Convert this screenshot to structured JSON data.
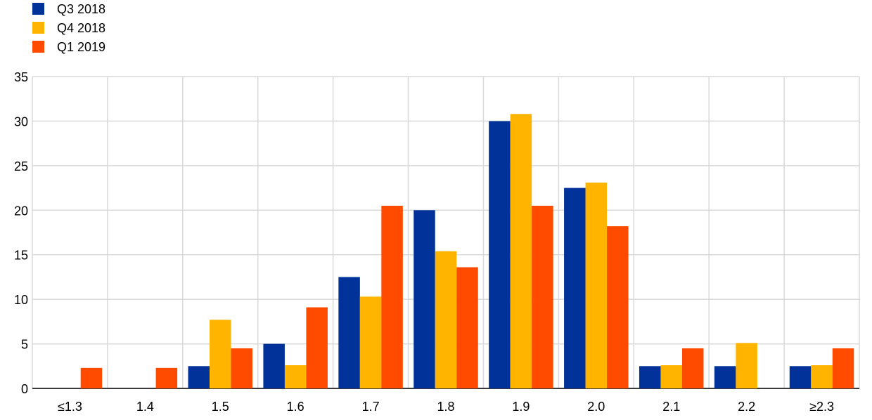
{
  "chart_data": {
    "type": "bar",
    "categories": [
      "≤1.3",
      "1.4",
      "1.5",
      "1.6",
      "1.7",
      "1.8",
      "1.9",
      "2.0",
      "2.1",
      "2.2",
      "≥2.3"
    ],
    "series": [
      {
        "name": "Q3 2018",
        "color": "#003299",
        "values": [
          0,
          0,
          2.5,
          5.0,
          12.5,
          20.0,
          30.0,
          22.5,
          2.5,
          2.5,
          2.5
        ]
      },
      {
        "name": "Q4 2018",
        "color": "#FFB400",
        "values": [
          0,
          0,
          7.7,
          2.6,
          10.3,
          15.4,
          30.8,
          23.1,
          2.6,
          5.1,
          2.6
        ]
      },
      {
        "name": "Q1 2019",
        "color": "#FF4B00",
        "values": [
          2.3,
          2.3,
          4.5,
          9.1,
          20.5,
          13.6,
          20.5,
          18.2,
          4.5,
          0,
          4.5
        ]
      }
    ],
    "yticks": [
      0,
      5,
      10,
      15,
      20,
      25,
      30,
      35
    ],
    "ylim": [
      0,
      35
    ],
    "grid": true,
    "legend": "top-left"
  }
}
